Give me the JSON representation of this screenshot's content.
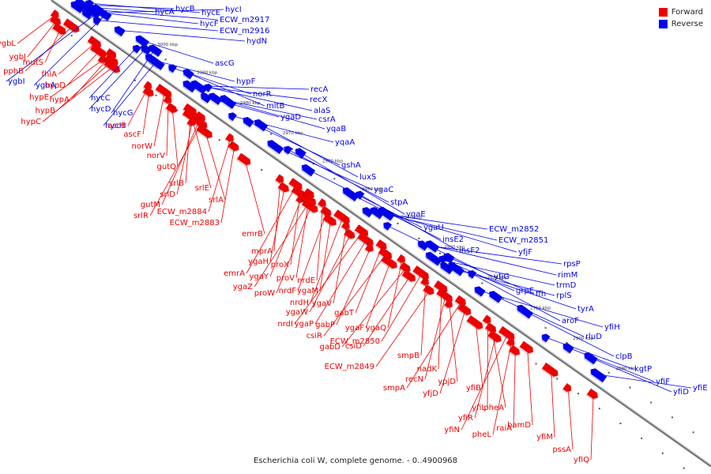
{
  "legend": {
    "forward": "Forward",
    "reverse": "Reverse"
  },
  "caption": "Escherichia coli W, complete genome. - 0..4900968",
  "colors": {
    "forward": "#ee0000",
    "reverse": "#0000ee",
    "axis": "#777777"
  },
  "ticks": [
    "3000 kbp",
    "2990 kbp",
    "2980 kbp",
    "2970 kbp",
    "2960 kbp",
    "2950 kbp",
    "2940 kbp",
    "2930 kbp",
    "2920 kbp",
    "2910 kbp",
    "2900 kbp",
    "2890 kbp"
  ],
  "genes": [
    {
      "name": "ygbL",
      "strand": "forward"
    },
    {
      "name": "ygbJ",
      "strand": "forward"
    },
    {
      "name": "mutS",
      "strand": "forward"
    },
    {
      "name": "pphB",
      "strand": "forward"
    },
    {
      "name": "ygbI",
      "strand": "reverse"
    },
    {
      "name": "ygbA",
      "strand": "reverse"
    },
    {
      "name": "fhlA",
      "strand": "forward"
    },
    {
      "name": "hypD",
      "strand": "forward"
    },
    {
      "name": "hypE",
      "strand": "forward"
    },
    {
      "name": "hypA",
      "strand": "forward"
    },
    {
      "name": "hypB",
      "strand": "forward"
    },
    {
      "name": "hypC",
      "strand": "forward"
    },
    {
      "name": "hycC",
      "strand": "reverse"
    },
    {
      "name": "hycD",
      "strand": "reverse"
    },
    {
      "name": "hycG",
      "strand": "reverse"
    },
    {
      "name": "hycH",
      "strand": "reverse"
    },
    {
      "name": "ascB",
      "strand": "forward"
    },
    {
      "name": "ascF",
      "strand": "forward"
    },
    {
      "name": "hycA",
      "strand": "reverse"
    },
    {
      "name": "hycB",
      "strand": "reverse"
    },
    {
      "name": "hycE",
      "strand": "reverse"
    },
    {
      "name": "hycI",
      "strand": "reverse"
    },
    {
      "name": "hycF",
      "strand": "reverse"
    },
    {
      "name": "ECW_m2917",
      "strand": "reverse"
    },
    {
      "name": "ECW_m2916",
      "strand": "reverse"
    },
    {
      "name": "hydN",
      "strand": "reverse"
    },
    {
      "name": "ascG",
      "strand": "reverse"
    },
    {
      "name": "hypF",
      "strand": "reverse"
    },
    {
      "name": "norR",
      "strand": "reverse"
    },
    {
      "name": "mltB",
      "strand": "reverse"
    },
    {
      "name": "recA",
      "strand": "reverse"
    },
    {
      "name": "recX",
      "strand": "reverse"
    },
    {
      "name": "alaS",
      "strand": "reverse"
    },
    {
      "name": "ygaD",
      "strand": "reverse"
    },
    {
      "name": "csrA",
      "strand": "reverse"
    },
    {
      "name": "yqaB",
      "strand": "reverse"
    },
    {
      "name": "yqaA",
      "strand": "reverse"
    },
    {
      "name": "gshA",
      "strand": "reverse"
    },
    {
      "name": "luxS",
      "strand": "reverse"
    },
    {
      "name": "norW",
      "strand": "forward"
    },
    {
      "name": "norV",
      "strand": "forward"
    },
    {
      "name": "gutQ",
      "strand": "forward"
    },
    {
      "name": "srlB",
      "strand": "forward"
    },
    {
      "name": "srlE",
      "strand": "forward"
    },
    {
      "name": "srlD",
      "strand": "forward"
    },
    {
      "name": "gutM",
      "strand": "forward"
    },
    {
      "name": "srlR",
      "strand": "forward"
    },
    {
      "name": "srlA",
      "strand": "forward"
    },
    {
      "name": "ECW_m2884",
      "strand": "forward"
    },
    {
      "name": "ECW_m2883",
      "strand": "forward"
    },
    {
      "name": "emrB",
      "strand": "forward"
    },
    {
      "name": "ygaC",
      "strand": "reverse"
    },
    {
      "name": "stpA",
      "strand": "reverse"
    },
    {
      "name": "ygaE",
      "strand": "reverse"
    },
    {
      "name": "ygaU",
      "strand": "reverse"
    },
    {
      "name": "insE2",
      "strand": "reverse"
    },
    {
      "name": "insF2",
      "strand": "reverse"
    },
    {
      "name": "ECW_m2852",
      "strand": "reverse"
    },
    {
      "name": "ECW_m2851",
      "strand": "reverse"
    },
    {
      "name": "yfjF",
      "strand": "reverse"
    },
    {
      "name": "yfjG",
      "strand": "reverse"
    },
    {
      "name": "rpsP",
      "strand": "reverse"
    },
    {
      "name": "rimM",
      "strand": "reverse"
    },
    {
      "name": "trmD",
      "strand": "reverse"
    },
    {
      "name": "grpE",
      "strand": "reverse"
    },
    {
      "name": "ffh",
      "strand": "reverse"
    },
    {
      "name": "rplS",
      "strand": "reverse"
    },
    {
      "name": "tyrA",
      "strand": "reverse"
    },
    {
      "name": "aroF",
      "strand": "reverse"
    },
    {
      "name": "yfiH",
      "strand": "reverse"
    },
    {
      "name": "rluD",
      "strand": "reverse"
    },
    {
      "name": "clpB",
      "strand": "reverse"
    },
    {
      "name": "kgtP",
      "strand": "reverse"
    },
    {
      "name": "yfiF",
      "strand": "reverse"
    },
    {
      "name": "yfiD",
      "strand": "reverse"
    },
    {
      "name": "yfiE",
      "strand": "reverse"
    },
    {
      "name": "mprA",
      "strand": "forward"
    },
    {
      "name": "ygaH",
      "strand": "forward"
    },
    {
      "name": "emrA",
      "strand": "forward"
    },
    {
      "name": "proX",
      "strand": "forward"
    },
    {
      "name": "ygaY",
      "strand": "forward"
    },
    {
      "name": "proV",
      "strand": "forward"
    },
    {
      "name": "ygaZ",
      "strand": "forward"
    },
    {
      "name": "proW",
      "strand": "forward"
    },
    {
      "name": "nrdE",
      "strand": "forward"
    },
    {
      "name": "nrdF",
      "strand": "forward"
    },
    {
      "name": "ygaM",
      "strand": "forward"
    },
    {
      "name": "nrdH",
      "strand": "forward"
    },
    {
      "name": "ygaV",
      "strand": "forward"
    },
    {
      "name": "ygaW",
      "strand": "forward"
    },
    {
      "name": "nrdI",
      "strand": "forward"
    },
    {
      "name": "ygaP",
      "strand": "forward"
    },
    {
      "name": "gabP",
      "strand": "forward"
    },
    {
      "name": "gabT",
      "strand": "forward"
    },
    {
      "name": "csiR",
      "strand": "forward"
    },
    {
      "name": "ygaF",
      "strand": "forward"
    },
    {
      "name": "ygaQ",
      "strand": "forward"
    },
    {
      "name": "gabD",
      "strand": "forward"
    },
    {
      "name": "csiD",
      "strand": "forward"
    },
    {
      "name": "ECW_m2850",
      "strand": "forward"
    },
    {
      "name": "smpB",
      "strand": "forward"
    },
    {
      "name": "ECW_m2849",
      "strand": "forward"
    },
    {
      "name": "nadK",
      "strand": "forward"
    },
    {
      "name": "recN",
      "strand": "forward"
    },
    {
      "name": "ypjD",
      "strand": "forward"
    },
    {
      "name": "smpA",
      "strand": "forward"
    },
    {
      "name": "yfjD",
      "strand": "forward"
    },
    {
      "name": "yfiB",
      "strand": "forward"
    },
    {
      "name": "yfiL",
      "strand": "forward"
    },
    {
      "name": "pheA",
      "strand": "forward"
    },
    {
      "name": "yfiR",
      "strand": "forward"
    },
    {
      "name": "yfiN",
      "strand": "forward"
    },
    {
      "name": "pheL",
      "strand": "forward"
    },
    {
      "name": "raiA",
      "strand": "forward"
    },
    {
      "name": "bamD",
      "strand": "forward"
    },
    {
      "name": "yfiM",
      "strand": "forward"
    },
    {
      "name": "pssA",
      "strand": "forward"
    },
    {
      "name": "yfiQ",
      "strand": "forward"
    }
  ]
}
